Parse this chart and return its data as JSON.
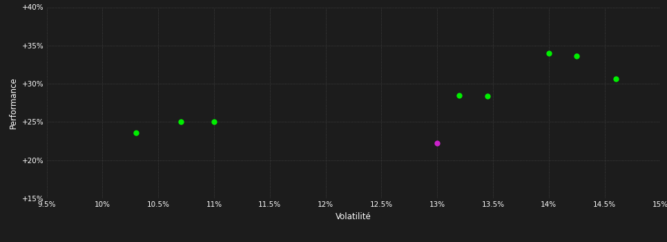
{
  "background_color": "#1c1c1c",
  "plot_bg_color": "#1c1c1c",
  "grid_color": "#4a4a4a",
  "text_color": "#ffffff",
  "xlabel": "Volatilité",
  "ylabel": "Performance",
  "xlim": [
    0.095,
    0.15
  ],
  "ylim": [
    0.15,
    0.4
  ],
  "xticks": [
    0.095,
    0.1,
    0.105,
    0.11,
    0.115,
    0.12,
    0.125,
    0.13,
    0.135,
    0.14,
    0.145,
    0.15
  ],
  "yticks": [
    0.15,
    0.2,
    0.25,
    0.3,
    0.35,
    0.4
  ],
  "green_points": [
    [
      0.103,
      0.236
    ],
    [
      0.107,
      0.25
    ],
    [
      0.11,
      0.25
    ],
    [
      0.132,
      0.285
    ],
    [
      0.1345,
      0.284
    ],
    [
      0.14,
      0.34
    ],
    [
      0.1425,
      0.336
    ],
    [
      0.146,
      0.306
    ]
  ],
  "magenta_points": [
    [
      0.13,
      0.222
    ]
  ],
  "green_color": "#00ee00",
  "magenta_color": "#cc22cc",
  "marker_size": 6,
  "figsize": [
    9.66,
    3.5
  ],
  "dpi": 100
}
